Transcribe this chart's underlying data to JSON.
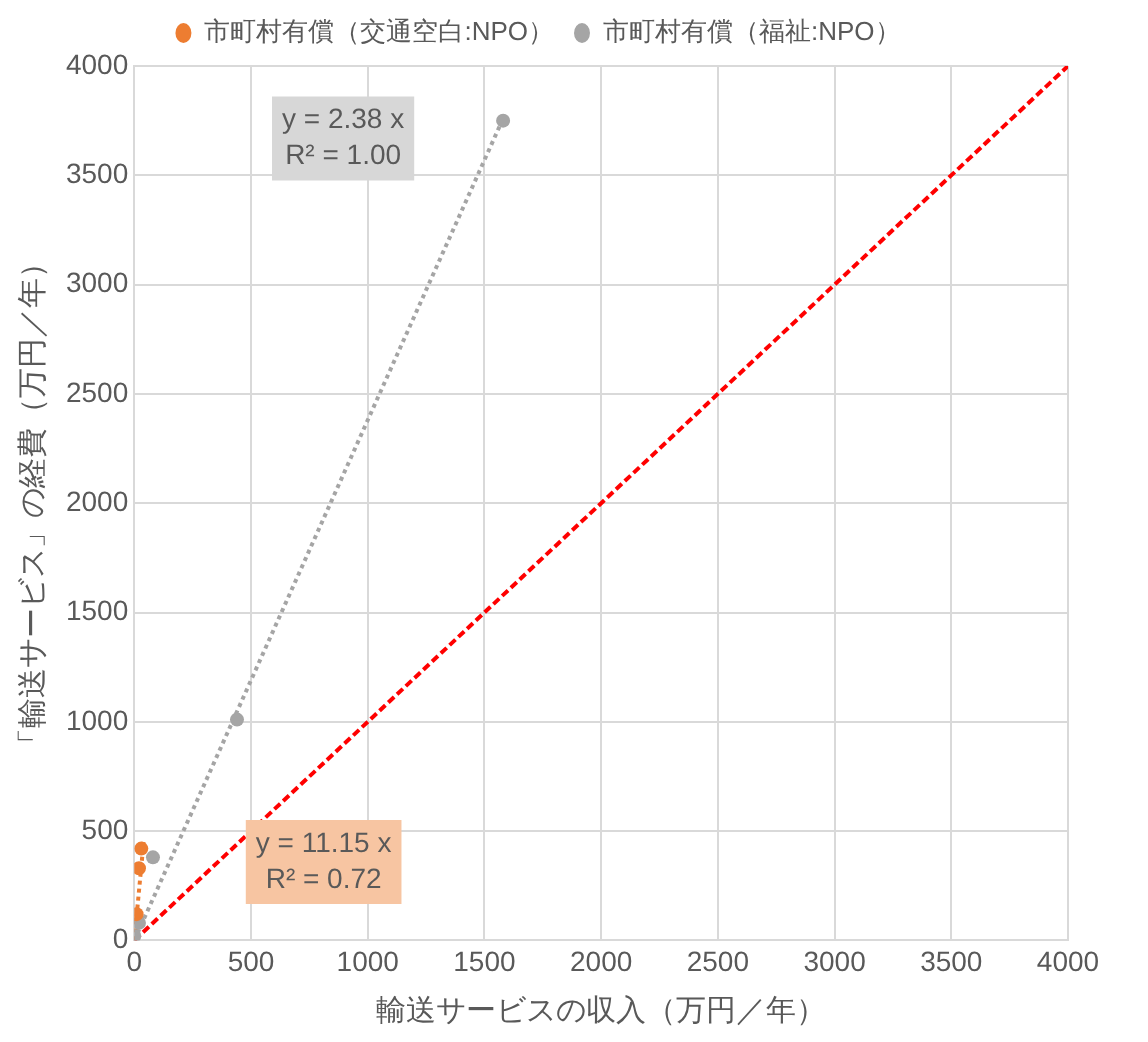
{
  "chart_data": {
    "type": "scatter",
    "xlabel": "輸送サービスの収入（万円／年）",
    "ylabel": "「輸送サービス」の経費（万円／年）",
    "xlim": [
      0,
      4000
    ],
    "ylim": [
      0,
      4000
    ],
    "xticks": [
      0,
      500,
      1000,
      1500,
      2000,
      2500,
      3000,
      3500,
      4000
    ],
    "yticks": [
      0,
      500,
      1000,
      1500,
      2000,
      2500,
      3000,
      3500,
      4000
    ],
    "grid": true,
    "legend": "top",
    "series": [
      {
        "name": "市町村有償（交通空白:NPO）",
        "color": "#ed7d31",
        "marker": "circle",
        "x": [
          10,
          20,
          30
        ],
        "values": [
          120,
          330,
          420
        ]
      },
      {
        "name": "市町村有償（福祉:NPO）",
        "color": "#a5a5a5",
        "marker": "circle",
        "x": [
          0,
          20,
          80,
          440,
          1580
        ],
        "values": [
          20,
          80,
          380,
          1010,
          3750
        ]
      },
      {
        "color": "#ed7d31",
        "type": "line",
        "marker": "none",
        "line_style": "dotted",
        "x": [
          0,
          40
        ],
        "values": [
          0,
          450
        ]
      },
      {
        "color": "#a5a5a5",
        "type": "line",
        "marker": "none",
        "line_style": "dotted",
        "x": [
          0,
          1580
        ],
        "values": [
          0,
          3760
        ]
      },
      {
        "color": "#ff0000",
        "type": "line",
        "marker": "none",
        "line_style": "dashed",
        "x": [
          0,
          4000
        ],
        "values": [
          0,
          4000
        ]
      }
    ],
    "annotations": [
      "y = 11.15 x\nR² = 0.72",
      "y = 2.38 x\nR² = 1.00"
    ]
  }
}
